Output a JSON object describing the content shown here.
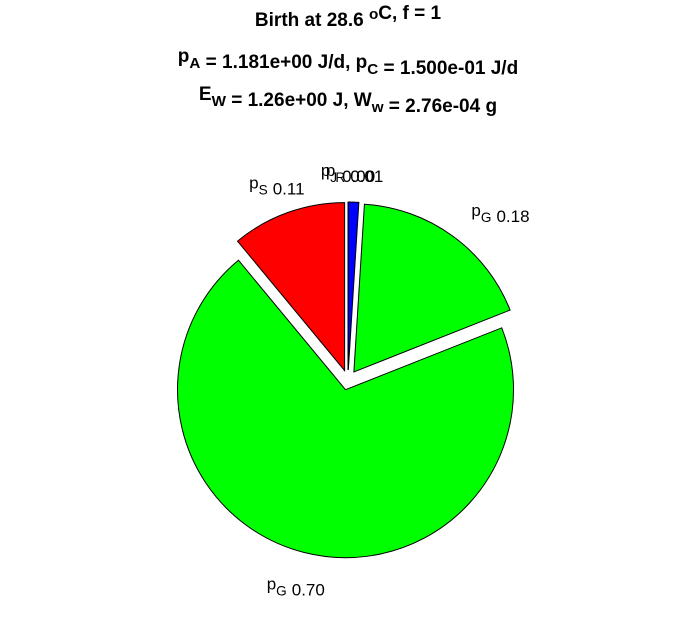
{
  "chart_data": {
    "type": "pie",
    "title": [
      [
        {
          "text": "Birth at 28.6 "
        },
        {
          "sup": "o"
        },
        {
          "text": "C, f = 1"
        }
      ],
      [
        {
          "text": "p"
        },
        {
          "sub": "A"
        },
        {
          "text": " = 1.181e+00 J/d, p"
        },
        {
          "sub": "C"
        },
        {
          "text": " = 1.500e-01 J/d"
        }
      ],
      [
        {
          "text": "E"
        },
        {
          "sub": "W"
        },
        {
          "text": " = 1.26e+00 J, W"
        },
        {
          "sub": "w"
        },
        {
          "text": " = 2.76e-04 g"
        }
      ]
    ],
    "categories": [
      [
        {
          "text": "p"
        },
        {
          "sub": "S"
        }
      ],
      [
        {
          "text": "p"
        },
        {
          "sub": "G"
        }
      ],
      [
        {
          "text": "p"
        },
        {
          "sub": "G"
        }
      ],
      [
        {
          "text": "p"
        },
        {
          "sub": "R"
        }
      ],
      [
        {
          "text": "p"
        },
        {
          "sub": "J"
        }
      ]
    ],
    "values": [
      0.11,
      0.7,
      0.18,
      0.01,
      0.0
    ],
    "value_labels": [
      "0.11",
      "0.70",
      "0.18",
      "0.01",
      "0.00"
    ],
    "colors": [
      "#ff0000",
      "#00ff00",
      "#00ff00",
      "#0000ff",
      "#ffff00"
    ],
    "explode": true
  }
}
